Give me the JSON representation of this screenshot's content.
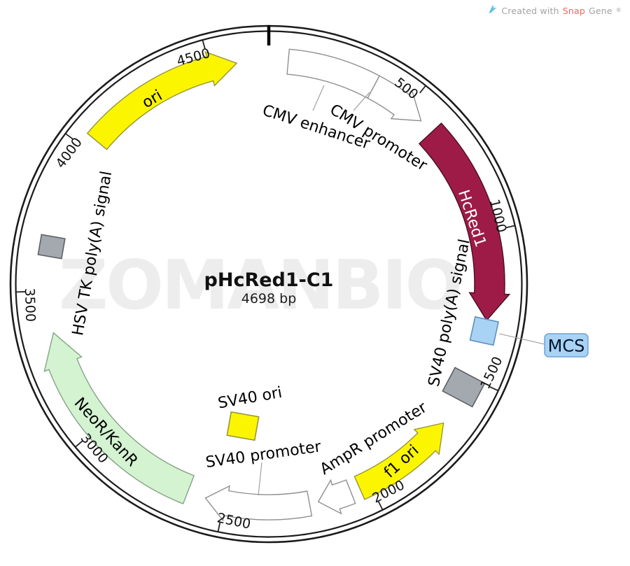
{
  "watermark": "ZOMANBIO",
  "credit": {
    "prefix": "Created with ",
    "brand_red": "Snap",
    "brand_gray": "Gene",
    "registered": "®"
  },
  "plasmid": {
    "title": "pHcRed1-C1",
    "size": "4698 bp",
    "length_bp": 4698,
    "ticks": [
      500,
      1000,
      1500,
      2000,
      2500,
      3000,
      3500,
      4000,
      4500
    ],
    "colors": {
      "ring": "#1b1b1b",
      "white_feature": "#ffffff",
      "feature_outline": "#8f8f8f",
      "crimson": "#9e1b48",
      "crimson_outline": "#470d24",
      "yellow": "#fcf500",
      "yellow_outline": "#96963c",
      "green": "#d3f3d1",
      "green_outline": "#85a385",
      "gray_box": "#a4a9b0",
      "gray_box_outline": "#5e6166",
      "mcs_blue": "#a8d3f4",
      "mcs_blue_outline": "#5d8fc0",
      "callout_line": "#9a9a9a",
      "watermark_gray": "#ededed"
    },
    "features": [
      {
        "id": "cmv-enhancer",
        "label": "CMV enhancer",
        "start": 65,
        "end": 365,
        "shape": "band",
        "direction": "cw",
        "fill": "#ffffff",
        "stroke": "#8f8f8f",
        "label_color": "#000000"
      },
      {
        "id": "cmv-promoter",
        "label": "CMV promoter",
        "start": 365,
        "end": 561,
        "shape": "arrow",
        "direction": "cw",
        "fill": "#ffffff",
        "stroke": "#8f8f8f",
        "label_color": "#000000"
      },
      {
        "id": "hcred1",
        "label": "HcRed1",
        "start": 613,
        "end": 1298,
        "shape": "arrow",
        "direction": "cw",
        "big": true,
        "fill": "#9e1b48",
        "stroke": "#470d24",
        "label_color": "#ffffff"
      },
      {
        "id": "mcs",
        "label": "MCS",
        "start": 1293,
        "end": 1377,
        "shape": "box",
        "fill": "#a8d3f4",
        "stroke": "#5d8fc0",
        "label_color": "#000000",
        "callout": true
      },
      {
        "id": "sv40-polya",
        "label": "SV40 poly(A) signal",
        "start": 1481,
        "end": 1596,
        "shape": "box",
        "fill": "#a4a9b0",
        "stroke": "#5e6166",
        "label_color": "#000000"
      },
      {
        "id": "f1-ori",
        "label": "f1 ori",
        "start": 1677,
        "end": 2036,
        "shape": "arrow",
        "direction": "ccw",
        "fill": "#fcf500",
        "stroke": "#96963c",
        "label_color": "#000000"
      },
      {
        "id": "ampr-promoter",
        "label": "AmpR promoter",
        "start": 2068,
        "end": 2182,
        "shape": "arrow",
        "direction": "cw",
        "fill": "#ffffff",
        "stroke": "#8f8f8f",
        "label_color": "#000000"
      },
      {
        "id": "sv40-promoter",
        "label": "SV40 promoter",
        "start": 2212,
        "end": 2564,
        "shape": "arrow",
        "direction": "cw",
        "fill": "#ffffff",
        "stroke": "#8f8f8f",
        "label_color": "#000000"
      },
      {
        "id": "sv40-ori",
        "label": "SV40 ori",
        "start": 2460,
        "end": 2530,
        "shape": "box",
        "fill": "#fcf500",
        "stroke": "#96963c",
        "label_color": "#000000"
      },
      {
        "id": "neor-kanr",
        "label": "NeoR/KanR",
        "start": 2627,
        "end": 3357,
        "shape": "arrow",
        "direction": "cw",
        "big": true,
        "fill": "#d3f3d1",
        "stroke": "#85a385",
        "label_color": "#000000"
      },
      {
        "id": "hsv-tk-polya",
        "label": "HSV TK poly(A) signal",
        "start": 3610,
        "end": 3692,
        "shape": "box",
        "fill": "#a4a9b0",
        "stroke": "#5e6166",
        "label_color": "#000000"
      },
      {
        "id": "ori",
        "label": "ori",
        "start": 4042,
        "end": 4590,
        "shape": "arrow",
        "direction": "cw",
        "fill": "#fcf500",
        "stroke": "#96963c",
        "label_color": "#000000"
      }
    ]
  }
}
